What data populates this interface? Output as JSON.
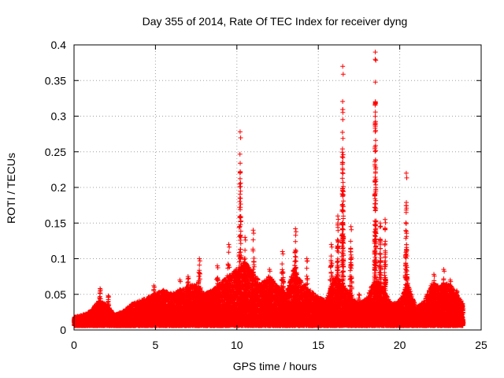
{
  "chart_data": {
    "type": "scatter",
    "title": "Day 355 of 2014, Rate Of TEC Index for receiver dyng",
    "xlabel": "GPS time / hours",
    "ylabel": "ROTI / TECUs",
    "xlim": [
      0,
      25
    ],
    "ylim": [
      0,
      0.4
    ],
    "xticks": [
      0,
      5,
      10,
      15,
      20,
      25
    ],
    "yticks": [
      0,
      0.05,
      0.1,
      0.15,
      0.2,
      0.25,
      0.3,
      0.35,
      0.4
    ],
    "xtick_labels": [
      "0",
      "5",
      "10",
      "15",
      "20",
      "25"
    ],
    "ytick_labels": [
      "0",
      "0.05",
      "0.1",
      "0.15",
      "0.2",
      "0.25",
      "0.3",
      "0.35",
      "0.4"
    ],
    "grid": true,
    "marker": "+",
    "color": "#ff0000",
    "x_range_data": [
      0,
      23.9
    ],
    "baseline_envelope": [
      [
        0.0,
        0.012
      ],
      [
        0.5,
        0.015
      ],
      [
        1.0,
        0.02
      ],
      [
        1.5,
        0.035
      ],
      [
        2.0,
        0.03
      ],
      [
        2.5,
        0.015
      ],
      [
        3.0,
        0.02
      ],
      [
        3.5,
        0.03
      ],
      [
        4.0,
        0.035
      ],
      [
        4.5,
        0.04
      ],
      [
        5.0,
        0.045
      ],
      [
        5.5,
        0.05
      ],
      [
        6.0,
        0.045
      ],
      [
        6.5,
        0.05
      ],
      [
        7.0,
        0.055
      ],
      [
        7.5,
        0.06
      ],
      [
        8.0,
        0.045
      ],
      [
        8.5,
        0.05
      ],
      [
        9.0,
        0.06
      ],
      [
        9.5,
        0.07
      ],
      [
        10.0,
        0.08
      ],
      [
        10.5,
        0.09
      ],
      [
        11.0,
        0.075
      ],
      [
        11.5,
        0.06
      ],
      [
        12.0,
        0.07
      ],
      [
        12.5,
        0.055
      ],
      [
        13.0,
        0.045
      ],
      [
        13.5,
        0.08
      ],
      [
        14.0,
        0.06
      ],
      [
        14.5,
        0.05
      ],
      [
        15.0,
        0.04
      ],
      [
        15.5,
        0.035
      ],
      [
        16.0,
        0.07
      ],
      [
        16.5,
        0.06
      ],
      [
        17.0,
        0.04
      ],
      [
        17.5,
        0.03
      ],
      [
        18.0,
        0.04
      ],
      [
        18.5,
        0.07
      ],
      [
        19.0,
        0.05
      ],
      [
        19.5,
        0.03
      ],
      [
        20.0,
        0.035
      ],
      [
        20.5,
        0.06
      ],
      [
        21.0,
        0.025
      ],
      [
        21.5,
        0.035
      ],
      [
        22.0,
        0.06
      ],
      [
        22.5,
        0.055
      ],
      [
        23.0,
        0.06
      ],
      [
        23.5,
        0.045
      ],
      [
        23.9,
        0.03
      ]
    ],
    "spikes": [
      {
        "x": 1.6,
        "ymax": 0.058,
        "width": 0.25
      },
      {
        "x": 2.1,
        "ymax": 0.048,
        "width": 0.2
      },
      {
        "x": 4.9,
        "ymax": 0.062,
        "width": 0.3
      },
      {
        "x": 6.5,
        "ymax": 0.07,
        "width": 0.3
      },
      {
        "x": 7.0,
        "ymax": 0.075,
        "width": 0.3
      },
      {
        "x": 7.7,
        "ymax": 0.1,
        "width": 0.25
      },
      {
        "x": 8.8,
        "ymax": 0.09,
        "width": 0.3
      },
      {
        "x": 9.5,
        "ymax": 0.12,
        "width": 0.3
      },
      {
        "x": 10.2,
        "ymax": 0.278,
        "width": 0.15
      },
      {
        "x": 10.5,
        "ymax": 0.13,
        "width": 0.25
      },
      {
        "x": 11.0,
        "ymax": 0.14,
        "width": 0.25
      },
      {
        "x": 12.0,
        "ymax": 0.085,
        "width": 0.25
      },
      {
        "x": 12.8,
        "ymax": 0.11,
        "width": 0.25
      },
      {
        "x": 13.6,
        "ymax": 0.142,
        "width": 0.2
      },
      {
        "x": 14.3,
        "ymax": 0.1,
        "width": 0.2
      },
      {
        "x": 15.8,
        "ymax": 0.12,
        "width": 0.25
      },
      {
        "x": 16.2,
        "ymax": 0.16,
        "width": 0.15
      },
      {
        "x": 16.5,
        "ymax": 0.37,
        "width": 0.1
      },
      {
        "x": 17.0,
        "ymax": 0.145,
        "width": 0.15
      },
      {
        "x": 17.5,
        "ymax": 0.05,
        "width": 0.2
      },
      {
        "x": 18.5,
        "ymax": 0.39,
        "width": 0.1
      },
      {
        "x": 18.8,
        "ymax": 0.15,
        "width": 0.15
      },
      {
        "x": 19.1,
        "ymax": 0.155,
        "width": 0.1
      },
      {
        "x": 20.4,
        "ymax": 0.22,
        "width": 0.12
      },
      {
        "x": 22.1,
        "ymax": 0.078,
        "width": 0.2
      },
      {
        "x": 22.7,
        "ymax": 0.085,
        "width": 0.15
      },
      {
        "x": 23.1,
        "ymax": 0.07,
        "width": 0.2
      },
      {
        "x": 23.5,
        "ymax": 0.055,
        "width": 0.2
      }
    ]
  }
}
